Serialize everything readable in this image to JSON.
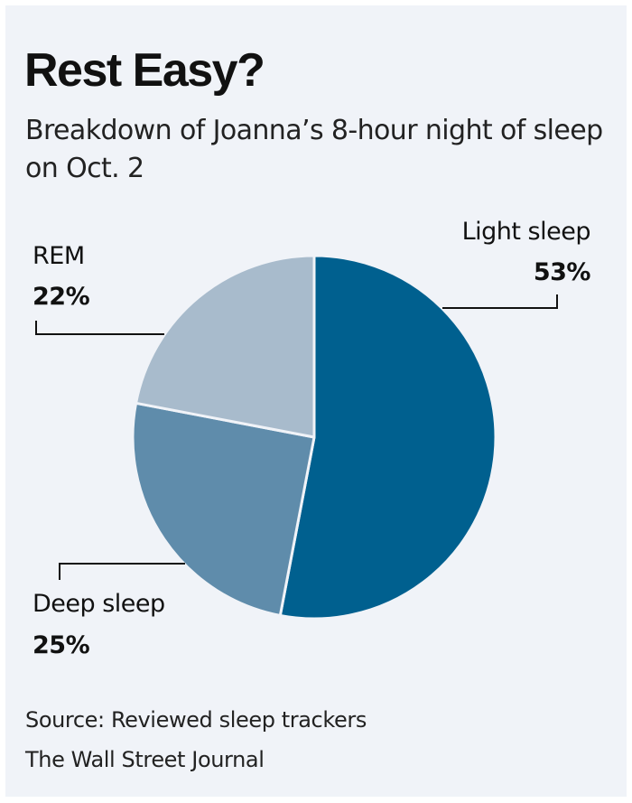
{
  "chart_data": {
    "type": "pie",
    "title": "Rest Easy?",
    "subtitle": "Breakdown of Joanna’s 8-hour night of sleep on Oct. 2",
    "slices": [
      {
        "label": "Light sleep",
        "value": 53,
        "value_label": "53%",
        "color": "#00608f"
      },
      {
        "label": "Deep sleep",
        "value": 25,
        "value_label": "25%",
        "color": "#5f8cab"
      },
      {
        "label": "REM",
        "value": 22,
        "value_label": "22%",
        "color": "#a8bbcc"
      }
    ],
    "start": "12 o'clock",
    "direction": "clockwise",
    "legend": "none (direct labels)"
  },
  "footer": {
    "source": "Source: Reviewed sleep trackers",
    "credit": "The Wall Street Journal"
  },
  "colors": {
    "background": "#f0f3f8",
    "slice_border": "#f0f3f8",
    "leader_line": "#111111"
  }
}
